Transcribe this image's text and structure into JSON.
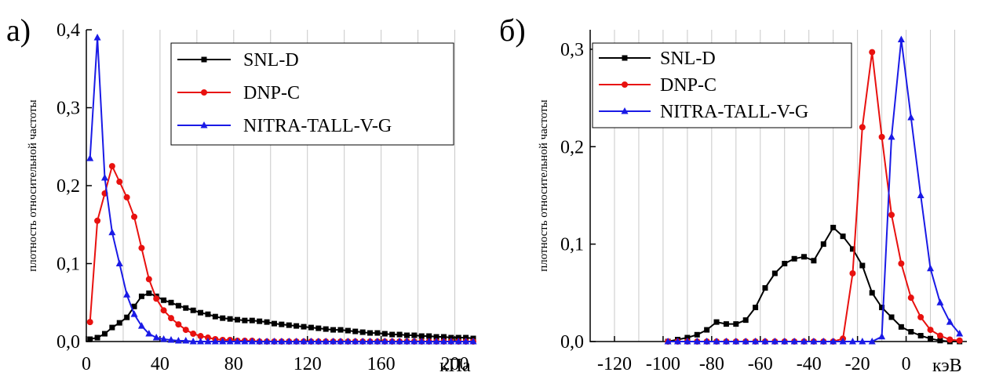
{
  "chart_data": [
    {
      "type": "line",
      "panel_label": "а)",
      "ylabel": "плотность относительной частоты",
      "xlabel": "",
      "x_unit": "кПа",
      "xlim": [
        0,
        210
      ],
      "ylim": [
        0,
        0.4
      ],
      "xticks": [
        0,
        40,
        80,
        120,
        160,
        200
      ],
      "yticks": [
        "0,0",
        "0,1",
        "0,2",
        "0,3",
        "0,4"
      ],
      "grid": "vertical",
      "legend_position": "top-right",
      "series": [
        {
          "name": "SNL-D",
          "color": "#000000",
          "marker": "square",
          "x": [
            2,
            6,
            10,
            14,
            18,
            22,
            26,
            30,
            34,
            38,
            42,
            46,
            50,
            54,
            58,
            62,
            66,
            70,
            74,
            78,
            82,
            86,
            90,
            94,
            98,
            102,
            106,
            110,
            114,
            118,
            122,
            126,
            130,
            134,
            138,
            142,
            146,
            150,
            154,
            158,
            162,
            166,
            170,
            174,
            178,
            182,
            186,
            190,
            194,
            198,
            202,
            206,
            210
          ],
          "y": [
            0.003,
            0.005,
            0.01,
            0.018,
            0.024,
            0.031,
            0.045,
            0.058,
            0.062,
            0.058,
            0.053,
            0.05,
            0.046,
            0.043,
            0.04,
            0.037,
            0.035,
            0.032,
            0.03,
            0.029,
            0.028,
            0.027,
            0.027,
            0.026,
            0.025,
            0.023,
            0.022,
            0.021,
            0.02,
            0.019,
            0.018,
            0.017,
            0.016,
            0.015,
            0.015,
            0.014,
            0.013,
            0.012,
            0.011,
            0.011,
            0.01,
            0.009,
            0.009,
            0.008,
            0.008,
            0.007,
            0.007,
            0.006,
            0.006,
            0.005,
            0.005,
            0.005,
            0.004
          ]
        },
        {
          "name": "DNP-C",
          "color": "#e8110f",
          "marker": "circle",
          "x": [
            2,
            6,
            10,
            14,
            18,
            22,
            26,
            30,
            34,
            38,
            42,
            46,
            50,
            54,
            58,
            62,
            66,
            70,
            74,
            78,
            82,
            86,
            90,
            94,
            98,
            102,
            106,
            110,
            114,
            118,
            122,
            126,
            130,
            134,
            138,
            142,
            146,
            150,
            154,
            158,
            162,
            166,
            170,
            174,
            178,
            182,
            186,
            190,
            194,
            198,
            202,
            206,
            210
          ],
          "y": [
            0.025,
            0.155,
            0.19,
            0.225,
            0.205,
            0.185,
            0.16,
            0.12,
            0.08,
            0.055,
            0.04,
            0.03,
            0.022,
            0.015,
            0.01,
            0.007,
            0.005,
            0.003,
            0.002,
            0.002,
            0.001,
            0.001,
            0.001,
            0,
            0,
            0,
            0,
            0,
            0,
            0,
            0,
            0,
            0,
            0,
            0,
            0,
            0,
            0,
            0,
            0,
            0,
            0,
            0,
            0,
            0,
            0,
            0,
            0,
            0,
            0,
            0,
            0,
            0
          ]
        },
        {
          "name": "NITRA-TALL-V-G",
          "color": "#1a1ae6",
          "marker": "triangle",
          "x": [
            2,
            6,
            10,
            14,
            18,
            22,
            26,
            30,
            34,
            38,
            42,
            46,
            50,
            54,
            58,
            62,
            66,
            70,
            74,
            78,
            82,
            86,
            90,
            94,
            98,
            102,
            106,
            110,
            114,
            118,
            122,
            126,
            130,
            134,
            138,
            142,
            146,
            150,
            154,
            158,
            162,
            166,
            170,
            174,
            178,
            182,
            186,
            190,
            194,
            198,
            202,
            206,
            210
          ],
          "y": [
            0.235,
            0.39,
            0.21,
            0.14,
            0.1,
            0.06,
            0.035,
            0.02,
            0.01,
            0.005,
            0.003,
            0.002,
            0.001,
            0.001,
            0,
            0,
            0,
            0,
            0,
            0,
            0,
            0,
            0,
            0,
            0,
            0,
            0,
            0,
            0,
            0,
            0,
            0,
            0,
            0,
            0,
            0,
            0,
            0,
            0,
            0,
            0,
            0,
            0,
            0,
            0,
            0,
            0,
            0,
            0,
            0,
            0,
            0,
            0
          ]
        }
      ]
    },
    {
      "type": "line",
      "panel_label": "б)",
      "ylabel": "плотность относительной частоты",
      "xlabel": "",
      "x_unit": "кэВ",
      "xlim": [
        -130,
        25
      ],
      "ylim": [
        0,
        0.32
      ],
      "xticks": [
        -120,
        -100,
        -80,
        -60,
        -40,
        -20,
        0
      ],
      "yticks": [
        "0,0",
        "0,1",
        "0,2",
        "0,3"
      ],
      "grid": "vertical",
      "legend_position": "top-left",
      "series": [
        {
          "name": "SNL-D",
          "color": "#000000",
          "marker": "square",
          "x": [
            -98,
            -94,
            -90,
            -86,
            -82,
            -78,
            -74,
            -70,
            -66,
            -62,
            -58,
            -54,
            -50,
            -46,
            -42,
            -38,
            -34,
            -30,
            -26,
            -22,
            -18,
            -14,
            -10,
            -6,
            -2,
            2,
            6,
            10,
            14,
            18,
            22
          ],
          "y": [
            0,
            0.002,
            0.004,
            0.007,
            0.012,
            0.02,
            0.018,
            0.018,
            0.022,
            0.035,
            0.055,
            0.07,
            0.08,
            0.085,
            0.087,
            0.083,
            0.1,
            0.117,
            0.108,
            0.095,
            0.078,
            0.05,
            0.035,
            0.025,
            0.015,
            0.01,
            0.006,
            0.003,
            0.001,
            0,
            0
          ]
        },
        {
          "name": "DNP-C",
          "color": "#e8110f",
          "marker": "circle",
          "x": [
            -98,
            -94,
            -90,
            -86,
            -82,
            -78,
            -74,
            -70,
            -66,
            -62,
            -58,
            -54,
            -50,
            -46,
            -42,
            -38,
            -34,
            -30,
            -26,
            -22,
            -18,
            -14,
            -10,
            -6,
            -2,
            2,
            6,
            10,
            14,
            18,
            22
          ],
          "y": [
            0,
            0,
            0,
            0,
            0,
            0,
            0,
            0,
            0,
            0,
            0,
            0,
            0,
            0,
            0,
            0,
            0,
            0,
            0.003,
            0.07,
            0.22,
            0.297,
            0.21,
            0.13,
            0.08,
            0.045,
            0.025,
            0.012,
            0.006,
            0.002,
            0.001
          ]
        },
        {
          "name": "NITRA-TALL-V-G",
          "color": "#1a1ae6",
          "marker": "triangle",
          "x": [
            -98,
            -94,
            -90,
            -86,
            -82,
            -78,
            -74,
            -70,
            -66,
            -62,
            -58,
            -54,
            -50,
            -46,
            -42,
            -38,
            -34,
            -30,
            -26,
            -22,
            -18,
            -14,
            -10,
            -6,
            -2,
            2,
            6,
            10,
            14,
            18,
            22
          ],
          "y": [
            0,
            0,
            0,
            0,
            0,
            0,
            0,
            0,
            0,
            0,
            0,
            0,
            0,
            0,
            0,
            0,
            0,
            0,
            0,
            0,
            0,
            0,
            0.005,
            0.21,
            0.31,
            0.23,
            0.15,
            0.075,
            0.04,
            0.02,
            0.008
          ]
        }
      ]
    }
  ]
}
